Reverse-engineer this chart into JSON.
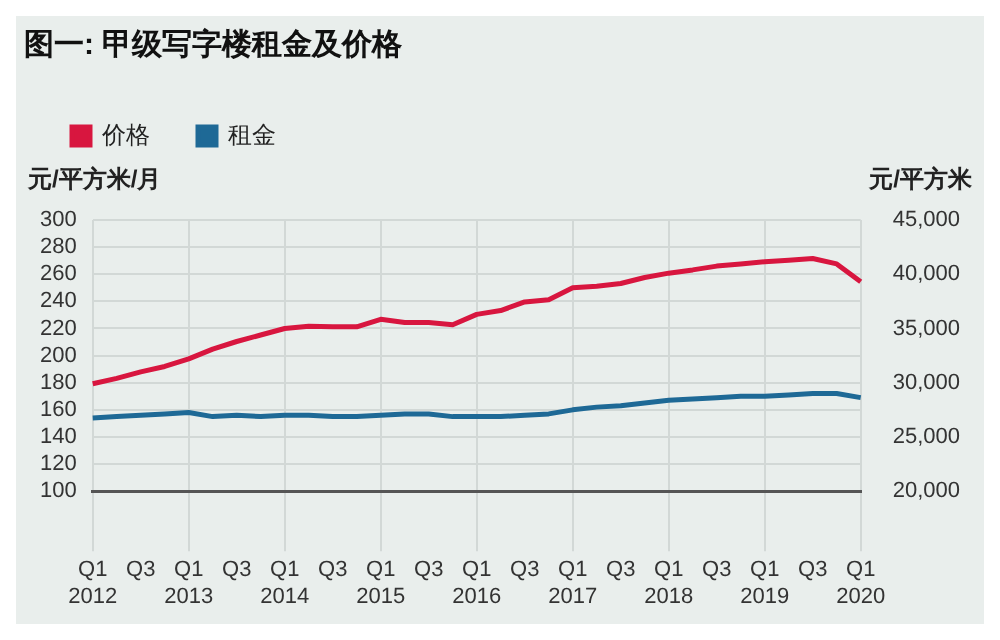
{
  "chart_data": {
    "type": "line",
    "title": "图一: 甲级写字楼租金及价格",
    "ylabel": "元/平方米/月",
    "y2label": "元/平方米",
    "categories": [
      "Q1\n2012",
      null,
      "Q3",
      null,
      "Q1\n2013",
      null,
      "Q3",
      null,
      "Q1\n2014",
      null,
      "Q3",
      null,
      "Q1\n2015",
      null,
      "Q3",
      null,
      "Q1\n2016",
      null,
      "Q3",
      null,
      "Q1\n2017",
      null,
      "Q3",
      null,
      "Q1\n2018",
      null,
      "Q3",
      null,
      "Q1\n2019",
      null,
      "Q3",
      null,
      "Q1\n2020"
    ],
    "series": [
      {
        "name": "价格",
        "color": "#d8163f",
        "axis": "y2",
        "values": [
          29900,
          30400,
          31000,
          31500,
          32200,
          33100,
          33800,
          34400,
          35000,
          35200,
          35150,
          35150,
          35850,
          35550,
          35550,
          35350,
          36300,
          36650,
          37450,
          37650,
          38750,
          38900,
          39150,
          39700,
          40100,
          40400,
          40750,
          40950,
          41150,
          41300,
          41450,
          40950,
          39300
        ]
      },
      {
        "name": "租金",
        "color": "#1e6996",
        "axis": "y",
        "values": [
          154,
          155,
          156,
          157,
          158,
          155,
          156,
          155,
          156,
          156,
          155,
          155,
          156,
          157,
          157,
          155,
          155,
          155,
          156,
          157,
          160,
          162,
          163,
          165,
          167,
          168,
          169,
          170,
          170,
          171,
          172,
          172,
          169
        ]
      }
    ],
    "ylim": [
      100,
      300
    ],
    "yticks": [
      100,
      120,
      140,
      160,
      180,
      200,
      220,
      240,
      260,
      280,
      300
    ],
    "y2lim": [
      20000,
      45000
    ],
    "y2ticks": [
      {
        "value": 20000,
        "label": "20,000"
      },
      {
        "value": 25000,
        "label": "25,000"
      },
      {
        "value": 30000,
        "label": "30,000"
      },
      {
        "value": 35000,
        "label": "35,000"
      },
      {
        "value": 40000,
        "label": "40,000"
      },
      {
        "value": 45000,
        "label": "45,000"
      }
    ],
    "grid": true,
    "legend": "top left",
    "marker": "none",
    "line_style": "solid"
  }
}
